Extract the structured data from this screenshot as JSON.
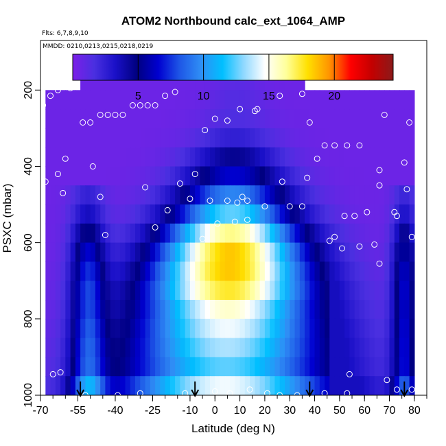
{
  "chart_data": {
    "type": "heatmap",
    "title": "ATOM2 Northbound calc_ext_1064_AMP",
    "flights_note": "Flts: 6,7,8,9,10",
    "dates_note": "MMDD: 0210,0213,0215,0218,0219",
    "xlabel": "Latitude (deg N)",
    "ylabel": "PSXC (mbar)",
    "xlim": [
      -70,
      85
    ],
    "ylim": [
      1000,
      70
    ],
    "x_ticks": [
      -70,
      -55,
      -40,
      -25,
      -10,
      0,
      10,
      20,
      30,
      40,
      50,
      60,
      70,
      80
    ],
    "y_ticks": [
      200,
      400,
      600,
      800,
      1000
    ],
    "colorbar": {
      "min": 0,
      "max": 24.5,
      "ticks": [
        5,
        10,
        15,
        20
      ],
      "colors": [
        "#7b1fe8",
        "#4a2fe0",
        "#1a10c8",
        "#000080",
        "#0000d0",
        "#1e56e6",
        "#2f8ef5",
        "#00bfff",
        "#8fd8ff",
        "#ffffff",
        "#ffff99",
        "#ffe000",
        "#ff9500",
        "#ff0000",
        "#c40000",
        "#8b1a1a"
      ]
    },
    "field_profile": {
      "levels": [
        175,
        225,
        275,
        325,
        375,
        425,
        475,
        525,
        575,
        625,
        675,
        725,
        775,
        825,
        875,
        925,
        975
      ],
      "peak_intensity": [
        0.6,
        0.8,
        1.0,
        2.0,
        4.0,
        6.0,
        9.0,
        12.0,
        16.0,
        18.0,
        18.0,
        17.0,
        15.0,
        14.0,
        13.0,
        12.0,
        14.0
      ],
      "core_lat_top": 8,
      "core_lat_bottom": 3,
      "southern_lobe_lat": -52,
      "northern_lobe_lat": 75
    },
    "sample_points": [
      {
        "lat": -69,
        "p": 240
      },
      {
        "lat": -66,
        "p": 215
      },
      {
        "lat": -63,
        "p": 200
      },
      {
        "lat": -58,
        "p": 195
      },
      {
        "lat": -53,
        "p": 285
      },
      {
        "lat": -50,
        "p": 285
      },
      {
        "lat": -46,
        "p": 265
      },
      {
        "lat": -43,
        "p": 265
      },
      {
        "lat": -40,
        "p": 265
      },
      {
        "lat": -37,
        "p": 265
      },
      {
        "lat": -33,
        "p": 240
      },
      {
        "lat": -30,
        "p": 240
      },
      {
        "lat": -27,
        "p": 240
      },
      {
        "lat": -24,
        "p": 240
      },
      {
        "lat": -20,
        "p": 215
      },
      {
        "lat": -16,
        "p": 205
      },
      {
        "lat": -68,
        "p": 440
      },
      {
        "lat": -63,
        "p": 420
      },
      {
        "lat": -60,
        "p": 380
      },
      {
        "lat": -61,
        "p": 470
      },
      {
        "lat": -49,
        "p": 400
      },
      {
        "lat": -46,
        "p": 480
      },
      {
        "lat": -28,
        "p": 455
      },
      {
        "lat": -14,
        "p": 445
      },
      {
        "lat": -8,
        "p": 420
      },
      {
        "lat": -10,
        "p": 485
      },
      {
        "lat": -4,
        "p": 305
      },
      {
        "lat": 0,
        "p": 275
      },
      {
        "lat": 5,
        "p": 280
      },
      {
        "lat": 10,
        "p": 250
      },
      {
        "lat": 16,
        "p": 255
      },
      {
        "lat": 17,
        "p": 250
      },
      {
        "lat": 26,
        "p": 215
      },
      {
        "lat": 35,
        "p": 210
      },
      {
        "lat": 38,
        "p": 285
      },
      {
        "lat": 41,
        "p": 380
      },
      {
        "lat": 44,
        "p": 345
      },
      {
        "lat": 48,
        "p": 345
      },
      {
        "lat": 53,
        "p": 345
      },
      {
        "lat": 58,
        "p": 345
      },
      {
        "lat": 68,
        "p": 265
      },
      {
        "lat": 78,
        "p": 285
      },
      {
        "lat": -2,
        "p": 490
      },
      {
        "lat": 5,
        "p": 490
      },
      {
        "lat": 9,
        "p": 495
      },
      {
        "lat": 11,
        "p": 480
      },
      {
        "lat": 13,
        "p": 490
      },
      {
        "lat": 20,
        "p": 505
      },
      {
        "lat": 27,
        "p": 440
      },
      {
        "lat": 30,
        "p": 505
      },
      {
        "lat": 35,
        "p": 505
      },
      {
        "lat": 37,
        "p": 430
      },
      {
        "lat": 52,
        "p": 530
      },
      {
        "lat": 56,
        "p": 530
      },
      {
        "lat": 61,
        "p": 520
      },
      {
        "lat": 66,
        "p": 410
      },
      {
        "lat": 66,
        "p": 450
      },
      {
        "lat": 72,
        "p": 520
      },
      {
        "lat": 73,
        "p": 530
      },
      {
        "lat": 76,
        "p": 390
      },
      {
        "lat": 77,
        "p": 460
      },
      {
        "lat": 79,
        "p": 585
      },
      {
        "lat": -19,
        "p": 515
      },
      {
        "lat": -24,
        "p": 560
      },
      {
        "lat": -44,
        "p": 580
      },
      {
        "lat": 1,
        "p": 550
      },
      {
        "lat": 8,
        "p": 545
      },
      {
        "lat": 13,
        "p": 540
      },
      {
        "lat": -5,
        "p": 590
      },
      {
        "lat": 48,
        "p": 585
      },
      {
        "lat": 46,
        "p": 595
      },
      {
        "lat": 51,
        "p": 615
      },
      {
        "lat": 58,
        "p": 610
      },
      {
        "lat": 64,
        "p": 605
      },
      {
        "lat": 66,
        "p": 655
      },
      {
        "lat": 54,
        "p": 945
      },
      {
        "lat": 69,
        "p": 960
      },
      {
        "lat": 73,
        "p": 985
      },
      {
        "lat": -65,
        "p": 945
      },
      {
        "lat": -62,
        "p": 940
      },
      {
        "lat": -52,
        "p": 1000
      },
      {
        "lat": -39,
        "p": 1000
      },
      {
        "lat": -30,
        "p": 995
      },
      {
        "lat": -12,
        "p": 995
      },
      {
        "lat": 0,
        "p": 990
      },
      {
        "lat": 6,
        "p": 995
      },
      {
        "lat": 14,
        "p": 985
      },
      {
        "lat": 21,
        "p": 995
      },
      {
        "lat": 26,
        "p": 1000
      },
      {
        "lat": 33,
        "p": 1000
      },
      {
        "lat": 44,
        "p": 995
      },
      {
        "lat": 53,
        "p": 995
      },
      {
        "lat": 79,
        "p": 985
      }
    ],
    "arrow_latitudes": [
      -54,
      -8,
      38,
      76
    ]
  }
}
